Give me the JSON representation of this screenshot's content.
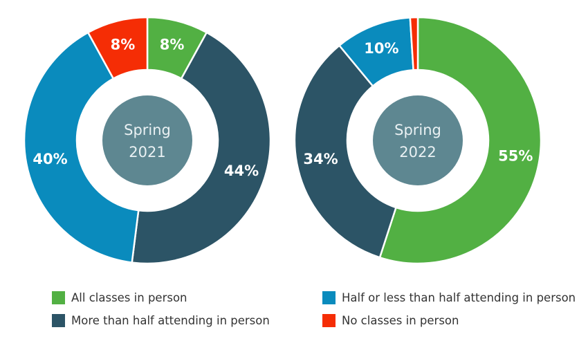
{
  "colors": {
    "all_in_person": "#52b043",
    "more_than_half": "#2c5466",
    "half_or_less": "#0a8bbd",
    "none": "#f52d05",
    "center_fill": "#5e8791"
  },
  "chart_data": [
    {
      "type": "donut",
      "center_label": [
        "Spring",
        "2021"
      ],
      "slices": [
        {
          "name": "All classes in person",
          "value": 8,
          "label": "8%",
          "color_key": "all_in_person"
        },
        {
          "name": "More than half attending in person",
          "value": 44,
          "label": "44%",
          "color_key": "more_than_half"
        },
        {
          "name": "Half or less than half attending in person",
          "value": 40,
          "label": "40%",
          "color_key": "half_or_less"
        },
        {
          "name": "No classes in person",
          "value": 8,
          "label": "8%",
          "color_key": "none"
        }
      ]
    },
    {
      "type": "donut",
      "center_label": [
        "Spring",
        "2022"
      ],
      "slices": [
        {
          "name": "All classes in person",
          "value": 55,
          "label": "55%",
          "color_key": "all_in_person"
        },
        {
          "name": "More than half attending in person",
          "value": 34,
          "label": "34%",
          "color_key": "more_than_half"
        },
        {
          "name": "Half or less than half attending in person",
          "value": 10,
          "label": "10%",
          "color_key": "half_or_less"
        },
        {
          "name": "No classes in person",
          "value": 1,
          "label": "",
          "color_key": "none"
        }
      ]
    }
  ],
  "legend": {
    "items": [
      {
        "label": "All classes in person",
        "color_key": "all_in_person"
      },
      {
        "label": "Half or less than half attending in person",
        "color_key": "half_or_less"
      },
      {
        "label": "More than half attending in person",
        "color_key": "more_than_half"
      },
      {
        "label": "No classes in person",
        "color_key": "none"
      }
    ]
  }
}
